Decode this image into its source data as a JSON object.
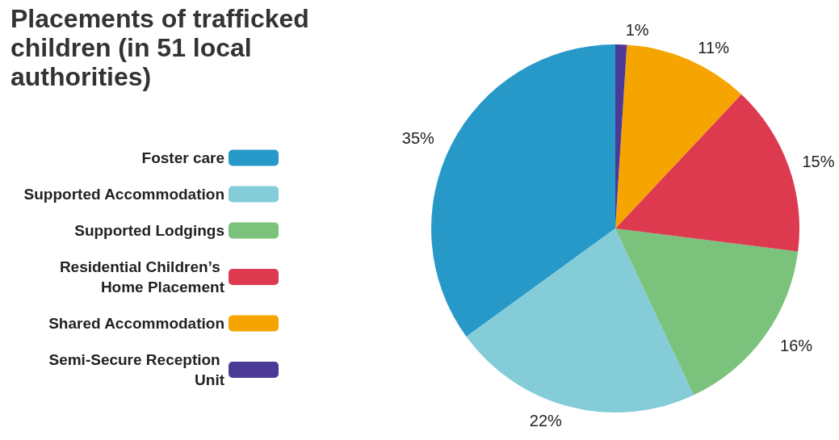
{
  "chart_data": {
    "type": "pie",
    "title": "Placements of trafficked children (in 51 local authorities)",
    "categories": [
      "Foster care",
      "Supported Accommodation",
      "Supported Lodgings",
      "Residential Children’s Home Placement",
      "Shared Accommodation",
      "Semi-Secure Reception Unit"
    ],
    "values": [
      35,
      22,
      16,
      15,
      11,
      1
    ],
    "value_labels": [
      "35%",
      "22%",
      "16%",
      "15%",
      "11%",
      "1%"
    ],
    "colors": [
      "#2799c9",
      "#84ccd8",
      "#7bc27d",
      "#dd3a50",
      "#f6a500",
      "#4c3a97"
    ],
    "legend": "left"
  }
}
